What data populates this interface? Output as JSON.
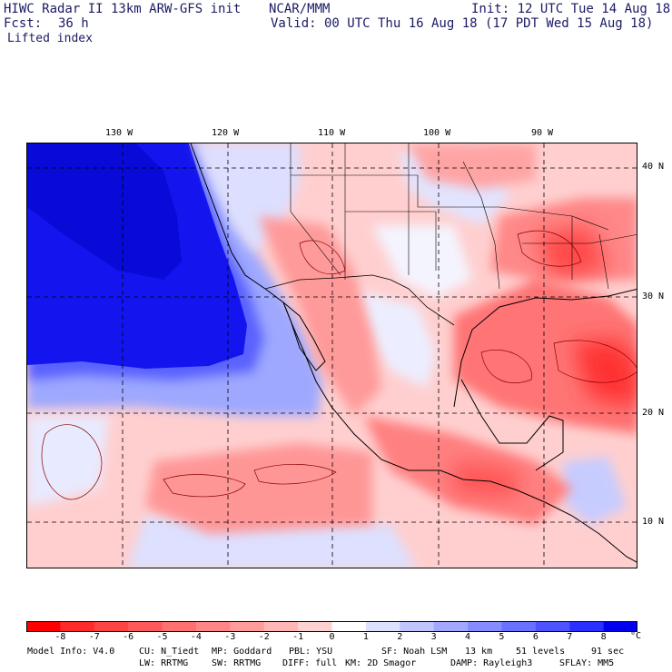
{
  "header": {
    "model": "HIWC Radar II 13km ARW-GFS init",
    "org": "NCAR/MMM",
    "init": "Init: 12 UTC Tue 14 Aug 18",
    "fcst_label": "Fcst:",
    "fcst_value": "36 h",
    "valid": "Valid: 00 UTC Thu 16 Aug 18 (17 PDT Wed 15 Aug 18)",
    "field": "Lifted index"
  },
  "map": {
    "lon_labels": [
      "130 W",
      "120 W",
      "110 W",
      "100 W",
      "90 W"
    ],
    "lat_labels": [
      "40 N",
      "30 N",
      "20 N",
      "10 N"
    ]
  },
  "colorbar": {
    "labels": [
      "-8",
      "-7",
      "-6",
      "-5",
      "-4",
      "-3",
      "-2",
      "-1",
      "0",
      "1",
      "2",
      "3",
      "4",
      "5",
      "6",
      "7",
      "8"
    ],
    "unit": "°C",
    "colors": [
      "#ff0000",
      "#ff2a2a",
      "#ff4444",
      "#ff5a5a",
      "#ff7070",
      "#ff8686",
      "#ff9c9c",
      "#ffb6b6",
      "#ffd2d2",
      "#ffffff",
      "#dde0ff",
      "#c0c4ff",
      "#a2a8ff",
      "#868cff",
      "#6a70ff",
      "#4e54ff",
      "#2a30ff",
      "#0000ee"
    ]
  },
  "footer": {
    "line1": [
      "Model Info: V4.0",
      "CU: N_Tiedt",
      "MP: Goddard",
      "PBL: YSU",
      "SF: Noah LSM",
      "13 km",
      "51 levels",
      "91 sec"
    ],
    "line2": [
      "LW: RRTMG",
      "SW: RRTMG",
      "DIFF: full",
      "KM: 2D Smagor",
      "DAMP: Rayleigh3",
      "SFLAY: MM5"
    ]
  }
}
